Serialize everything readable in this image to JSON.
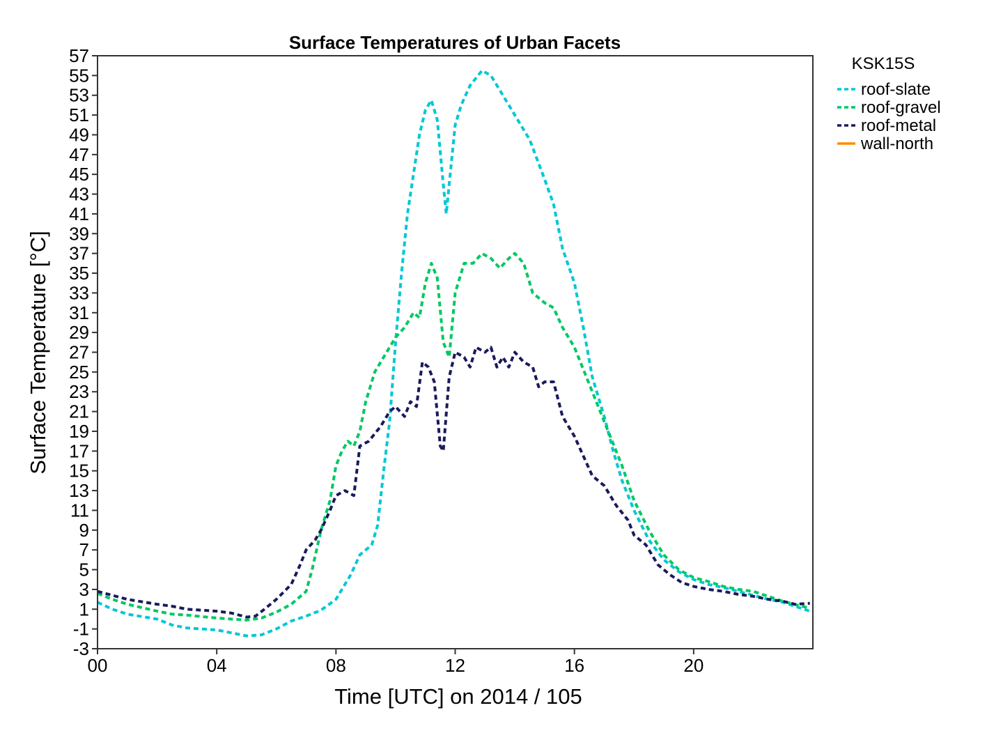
{
  "chart_data": {
    "type": "line",
    "title": "Surface Temperatures of Urban Facets",
    "xlabel": "Time [UTC] on 2014 / 105",
    "ylabel": "Surface Temperature [°C]",
    "xlim": [
      0,
      24
    ],
    "ylim": [
      -3,
      57
    ],
    "x_ticks": [
      0,
      4,
      8,
      12,
      16,
      20
    ],
    "x_tick_labels": [
      "00",
      "04",
      "08",
      "12",
      "16",
      "20"
    ],
    "y_ticks": [
      -3,
      -1,
      1,
      3,
      5,
      7,
      9,
      11,
      13,
      15,
      17,
      19,
      21,
      23,
      25,
      27,
      29,
      31,
      33,
      35,
      37,
      39,
      41,
      43,
      45,
      47,
      49,
      51,
      53,
      55,
      57
    ],
    "legend_title": "KSK15S",
    "legend_position": "outside-right",
    "grid": false,
    "series": [
      {
        "name": "roof-slate",
        "color": "#00c8d4",
        "style": "dashed",
        "points": [
          [
            0,
            1.7
          ],
          [
            0.5,
            1.0
          ],
          [
            1,
            0.5
          ],
          [
            2,
            0.0
          ],
          [
            2.5,
            -0.6
          ],
          [
            3,
            -0.9
          ],
          [
            4,
            -1.1
          ],
          [
            4.5,
            -1.4
          ],
          [
            5,
            -1.7
          ],
          [
            5.5,
            -1.6
          ],
          [
            6,
            -1.0
          ],
          [
            6.5,
            -0.2
          ],
          [
            7,
            0.3
          ],
          [
            7.5,
            0.9
          ],
          [
            8,
            2.0
          ],
          [
            8.2,
            3.0
          ],
          [
            8.5,
            4.5
          ],
          [
            8.8,
            6.5
          ],
          [
            9.2,
            7.5
          ],
          [
            9.4,
            9.5
          ],
          [
            9.6,
            15.0
          ],
          [
            9.8,
            20.0
          ],
          [
            10.0,
            28.0
          ],
          [
            10.2,
            35.0
          ],
          [
            10.4,
            41.0
          ],
          [
            10.6,
            45.0
          ],
          [
            10.8,
            49.0
          ],
          [
            11.0,
            51.5
          ],
          [
            11.2,
            52.5
          ],
          [
            11.4,
            50.5
          ],
          [
            11.6,
            44.0
          ],
          [
            11.7,
            41.0
          ],
          [
            11.8,
            44.0
          ],
          [
            12.0,
            50.0
          ],
          [
            12.2,
            52.0
          ],
          [
            12.5,
            54.0
          ],
          [
            12.9,
            55.5
          ],
          [
            13.2,
            55.0
          ],
          [
            13.5,
            53.5
          ],
          [
            14.0,
            51.0
          ],
          [
            14.5,
            48.5
          ],
          [
            15.0,
            44.5
          ],
          [
            15.3,
            42.0
          ],
          [
            15.6,
            37.5
          ],
          [
            16.0,
            34.0
          ],
          [
            16.3,
            29.5
          ],
          [
            16.6,
            24.5
          ],
          [
            17.0,
            20.5
          ],
          [
            17.3,
            17.0
          ],
          [
            17.6,
            14.0
          ],
          [
            18.0,
            11.0
          ],
          [
            18.5,
            8.0
          ],
          [
            19.0,
            6.0
          ],
          [
            19.5,
            4.8
          ],
          [
            20.0,
            4.0
          ],
          [
            20.5,
            3.5
          ],
          [
            21,
            3.2
          ],
          [
            21.5,
            2.8
          ],
          [
            22,
            2.4
          ],
          [
            22.5,
            2.0
          ],
          [
            23,
            1.7
          ],
          [
            23.5,
            1.2
          ],
          [
            23.9,
            0.8
          ]
        ]
      },
      {
        "name": "roof-gravel",
        "color": "#00c864",
        "style": "dashed",
        "points": [
          [
            0,
            2.6
          ],
          [
            0.5,
            2.0
          ],
          [
            1,
            1.5
          ],
          [
            2,
            0.8
          ],
          [
            2.5,
            0.5
          ],
          [
            3,
            0.4
          ],
          [
            4,
            0.1
          ],
          [
            4.5,
            0.0
          ],
          [
            5,
            -0.1
          ],
          [
            5.5,
            0.1
          ],
          [
            6,
            0.7
          ],
          [
            6.5,
            1.5
          ],
          [
            7,
            2.8
          ],
          [
            7.2,
            5.0
          ],
          [
            7.5,
            9.0
          ],
          [
            7.8,
            12.0
          ],
          [
            8.0,
            15.5
          ],
          [
            8.2,
            17.0
          ],
          [
            8.4,
            18.0
          ],
          [
            8.6,
            17.5
          ],
          [
            8.8,
            19.0
          ],
          [
            9.0,
            22.0
          ],
          [
            9.3,
            25.0
          ],
          [
            9.6,
            26.5
          ],
          [
            10.0,
            28.5
          ],
          [
            10.3,
            29.5
          ],
          [
            10.6,
            31.0
          ],
          [
            10.8,
            30.5
          ],
          [
            11.0,
            34.0
          ],
          [
            11.2,
            36.0
          ],
          [
            11.4,
            34.5
          ],
          [
            11.6,
            28.0
          ],
          [
            11.8,
            26.5
          ],
          [
            12.0,
            33.0
          ],
          [
            12.3,
            36.0
          ],
          [
            12.6,
            36.0
          ],
          [
            12.9,
            37.0
          ],
          [
            13.2,
            36.5
          ],
          [
            13.5,
            35.5
          ],
          [
            13.8,
            36.5
          ],
          [
            14.0,
            37.0
          ],
          [
            14.3,
            36.0
          ],
          [
            14.6,
            33.0
          ],
          [
            15.0,
            32.0
          ],
          [
            15.3,
            31.5
          ],
          [
            15.6,
            29.5
          ],
          [
            16.0,
            27.5
          ],
          [
            16.4,
            24.5
          ],
          [
            16.8,
            21.5
          ],
          [
            17.2,
            18.5
          ],
          [
            17.6,
            15.5
          ],
          [
            18.0,
            12.0
          ],
          [
            18.5,
            9.0
          ],
          [
            19.0,
            6.5
          ],
          [
            19.5,
            5.0
          ],
          [
            20.0,
            4.2
          ],
          [
            20.5,
            3.8
          ],
          [
            21.0,
            3.3
          ],
          [
            21.5,
            3.0
          ],
          [
            22.0,
            2.8
          ],
          [
            22.5,
            2.3
          ],
          [
            23.0,
            1.8
          ],
          [
            23.5,
            1.4
          ],
          [
            23.9,
            1.1
          ]
        ]
      },
      {
        "name": "roof-metal",
        "color": "#1a1a5c",
        "style": "dashed",
        "points": [
          [
            0,
            2.8
          ],
          [
            0.5,
            2.4
          ],
          [
            1,
            2.0
          ],
          [
            2,
            1.5
          ],
          [
            2.5,
            1.3
          ],
          [
            3,
            1.0
          ],
          [
            4,
            0.8
          ],
          [
            4.5,
            0.6
          ],
          [
            5,
            0.2
          ],
          [
            5.3,
            0.3
          ],
          [
            5.6,
            1.0
          ],
          [
            6.0,
            2.0
          ],
          [
            6.5,
            3.5
          ],
          [
            6.8,
            5.5
          ],
          [
            7.0,
            7.0
          ],
          [
            7.3,
            8.0
          ],
          [
            7.5,
            9.0
          ],
          [
            7.8,
            11.0
          ],
          [
            8.0,
            12.5
          ],
          [
            8.3,
            13.0
          ],
          [
            8.6,
            12.5
          ],
          [
            8.8,
            17.5
          ],
          [
            9.1,
            18.0
          ],
          [
            9.5,
            19.5
          ],
          [
            9.8,
            21.0
          ],
          [
            10.0,
            21.5
          ],
          [
            10.3,
            20.5
          ],
          [
            10.5,
            22.0
          ],
          [
            10.7,
            21.5
          ],
          [
            10.9,
            26.0
          ],
          [
            11.1,
            25.5
          ],
          [
            11.3,
            24.0
          ],
          [
            11.5,
            17.5
          ],
          [
            11.6,
            17.0
          ],
          [
            11.8,
            24.5
          ],
          [
            12.0,
            27.0
          ],
          [
            12.3,
            26.5
          ],
          [
            12.5,
            25.5
          ],
          [
            12.7,
            27.5
          ],
          [
            13.0,
            27.0
          ],
          [
            13.2,
            27.5
          ],
          [
            13.4,
            25.5
          ],
          [
            13.6,
            26.5
          ],
          [
            13.8,
            25.5
          ],
          [
            14.0,
            27.0
          ],
          [
            14.3,
            26.0
          ],
          [
            14.6,
            25.5
          ],
          [
            14.8,
            23.5
          ],
          [
            15.0,
            24.0
          ],
          [
            15.3,
            24.0
          ],
          [
            15.6,
            20.5
          ],
          [
            16.0,
            18.5
          ],
          [
            16.3,
            16.5
          ],
          [
            16.6,
            14.5
          ],
          [
            17.0,
            13.5
          ],
          [
            17.4,
            11.5
          ],
          [
            17.8,
            10.0
          ],
          [
            18.0,
            8.5
          ],
          [
            18.4,
            7.5
          ],
          [
            18.8,
            5.5
          ],
          [
            19.2,
            4.5
          ],
          [
            19.6,
            3.7
          ],
          [
            20.0,
            3.3
          ],
          [
            20.5,
            3.0
          ],
          [
            21.0,
            2.8
          ],
          [
            21.5,
            2.5
          ],
          [
            22.0,
            2.3
          ],
          [
            22.5,
            2.0
          ],
          [
            23.0,
            1.8
          ],
          [
            23.4,
            1.5
          ],
          [
            23.9,
            1.6
          ]
        ]
      },
      {
        "name": "wall-north",
        "color": "#ff8c00",
        "style": "solid",
        "points": []
      }
    ]
  }
}
